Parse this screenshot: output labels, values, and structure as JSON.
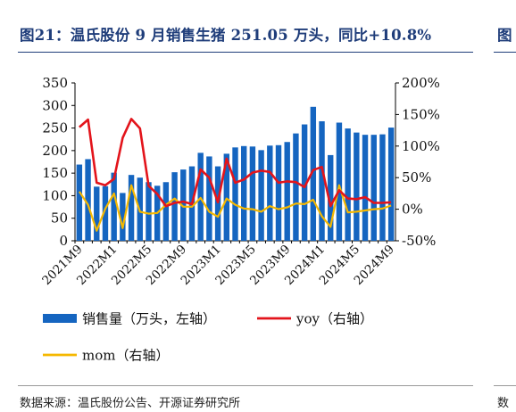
{
  "header": {
    "title": "图21：温氏股份 9 月销售生猪 251.05 万头，同比+10.8%",
    "title_right_fragment": "图"
  },
  "footer": {
    "source": "数据来源：温氏股份公告、开源证券研究所",
    "source_right_fragment": "数"
  },
  "colors": {
    "title": "#1f3d7a",
    "bar": "#1565c0",
    "yoy": "#e3141b",
    "mom": "#f5b800"
  },
  "chart_data": {
    "type": "bar",
    "x": [
      "2021M9",
      "2021M10",
      "2021M11",
      "2021M12",
      "2022M1",
      "2022M2",
      "2022M3",
      "2022M4",
      "2022M5",
      "2022M6",
      "2022M7",
      "2022M8",
      "2022M9",
      "2022M10",
      "2022M11",
      "2022M12",
      "2023M1",
      "2023M2",
      "2023M3",
      "2023M4",
      "2023M5",
      "2023M6",
      "2023M7",
      "2023M8",
      "2023M9",
      "2023M10",
      "2023M11",
      "2023M12",
      "2024M1",
      "2024M2",
      "2024M3",
      "2024M4",
      "2024M5",
      "2024M6",
      "2024M7",
      "2024M8",
      "2024M9"
    ],
    "x_tick_labels": [
      "2021M9",
      "2022M1",
      "2022M5",
      "2022M9",
      "2023M1",
      "2023M5",
      "2023M9",
      "2024M1",
      "2024M5",
      "2024M9"
    ],
    "series": [
      {
        "name": "销售量（万头，左轴）",
        "type": "bar",
        "axis": "left",
        "values": [
          169,
          181,
          120,
          121,
          151,
          106,
          146,
          140,
          130,
          122,
          130,
          152,
          158,
          165,
          195,
          187,
          165,
          193,
          207,
          210,
          209,
          201,
          211,
          212,
          219,
          238,
          258,
          297,
          265,
          190,
          262,
          249,
          240,
          235,
          235,
          236,
          251
        ]
      },
      {
        "name": "yoy（右轴）",
        "type": "line",
        "axis": "right",
        "values": [
          130,
          142,
          42,
          38,
          48,
          113,
          143,
          128,
          37,
          24,
          5,
          10,
          12,
          8,
          63,
          50,
          11,
          80,
          42,
          47,
          58,
          61,
          59,
          42,
          44,
          43,
          35,
          62,
          67,
          5,
          30,
          17,
          16,
          19,
          10,
          10,
          11
        ]
      },
      {
        "name": "mom（右轴）",
        "type": "line",
        "axis": "right",
        "values": [
          28,
          7,
          -34,
          1,
          25,
          -30,
          38,
          -4,
          -7,
          -6,
          7,
          17,
          4,
          4,
          18,
          -4,
          -12,
          17,
          7,
          1,
          0,
          -4,
          5,
          0,
          3,
          9,
          8,
          15,
          -11,
          -28,
          38,
          -5,
          -4,
          -2,
          0,
          1,
          6
        ]
      }
    ],
    "y_left": {
      "min": 0,
      "max": 350,
      "ticks": [
        0,
        50,
        100,
        150,
        200,
        250,
        300,
        350
      ]
    },
    "y_right": {
      "min": -50,
      "max": 200,
      "ticks": [
        -50,
        0,
        50,
        100,
        150,
        200
      ],
      "unit": "%"
    },
    "grid": false,
    "legend_position": "bottom"
  }
}
